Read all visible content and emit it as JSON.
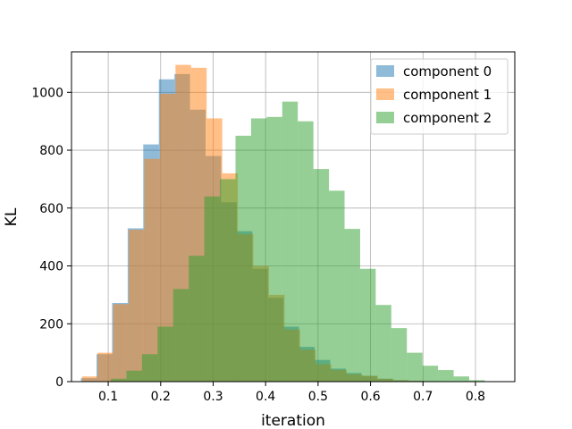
{
  "chart_data": {
    "type": "histogram",
    "title": "",
    "xlabel": "iteration",
    "ylabel": "KL",
    "xlim": [
      0.03,
      0.875
    ],
    "ylim": [
      0,
      1140
    ],
    "x_ticks": [
      0.1,
      0.2,
      0.3,
      0.4,
      0.5,
      0.6,
      0.7,
      0.8
    ],
    "x_tick_labels": [
      "0.1",
      "0.2",
      "0.3",
      "0.4",
      "0.5",
      "0.6",
      "0.7",
      "0.8"
    ],
    "y_ticks": [
      0,
      200,
      400,
      600,
      800,
      1000
    ],
    "y_tick_labels": [
      "0",
      "200",
      "400",
      "600",
      "800",
      "1000"
    ],
    "grid": true,
    "legend_position": "top-right",
    "series": [
      {
        "name": "component 0",
        "color": "#1f77b4",
        "opacity": 0.5,
        "bin_start": 0.048,
        "bin_width": 0.0297,
        "counts": [
          12,
          95,
          272,
          530,
          820,
          1045,
          1063,
          940,
          780,
          620,
          520,
          390,
          290,
          190,
          120,
          75,
          45,
          30,
          20,
          10,
          5,
          3,
          2
        ]
      },
      {
        "name": "component 1",
        "color": "#ff7f0e",
        "opacity": 0.5,
        "bin_start": 0.05,
        "bin_width": 0.0297,
        "counts": [
          18,
          100,
          268,
          525,
          770,
          995,
          1095,
          1085,
          910,
          720,
          510,
          400,
          300,
          180,
          110,
          60,
          40,
          25,
          20,
          10,
          5,
          3
        ]
      },
      {
        "name": "component 2",
        "color": "#2ca02c",
        "opacity": 0.5,
        "bin_start": 0.105,
        "bin_width": 0.0297,
        "counts": [
          10,
          38,
          95,
          190,
          320,
          435,
          640,
          700,
          850,
          910,
          915,
          968,
          900,
          735,
          660,
          528,
          390,
          265,
          185,
          100,
          55,
          40,
          18,
          5
        ]
      }
    ]
  }
}
